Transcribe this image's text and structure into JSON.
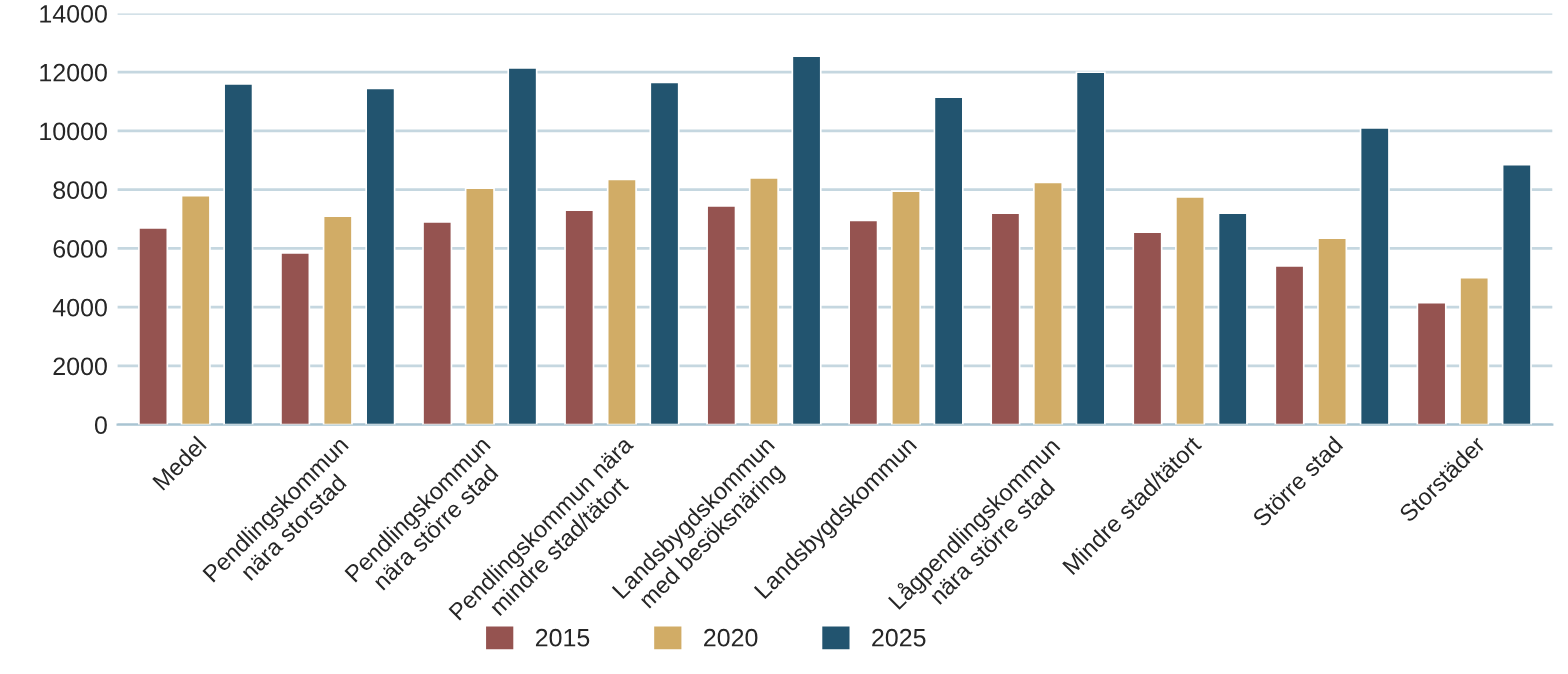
{
  "chart_data": {
    "type": "bar",
    "categories": [
      "Medel",
      "Pendlingskommun\nnära storstad",
      "Pendlingskommun\nnära större stad",
      "Pendlingskommun nära\nmindre stad/tätort",
      "Landsbygdskommun\nmed besöksnäring",
      "Landsbygdskommun",
      "Lågpendlingskommun\nnära större stad",
      "Mindre stad/tätort",
      "Större stad",
      "Storstäder"
    ],
    "series": [
      {
        "name": "2015",
        "color": "#955350",
        "values": [
          6700,
          5850,
          6900,
          7300,
          7450,
          6950,
          7200,
          6550,
          5400,
          4150
        ]
      },
      {
        "name": "2020",
        "color": "#d1ac66",
        "values": [
          7800,
          7100,
          8050,
          8350,
          8400,
          7950,
          8250,
          7750,
          6350,
          5000
        ]
      },
      {
        "name": "2025",
        "color": "#22546f",
        "values": [
          11600,
          11450,
          12150,
          11650,
          12550,
          11150,
          12000,
          7200,
          10100,
          8850
        ]
      }
    ],
    "ylim": [
      0,
      14000
    ],
    "yticks": [
      0,
      2000,
      4000,
      6000,
      8000,
      10000,
      12000,
      14000
    ],
    "grid": "y",
    "legend": "bottom"
  }
}
